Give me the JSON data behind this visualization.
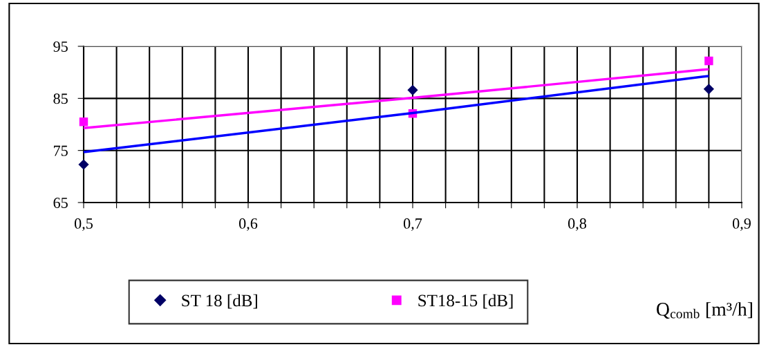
{
  "chart_data": {
    "type": "scatter",
    "xlabel": "Q$_{comb}$ [m³/h]",
    "x": [
      0.5,
      0.7,
      0.88
    ],
    "series": [
      {
        "name": "ST 18 [dB]",
        "color": "#000066",
        "marker": "diamond",
        "values": [
          72.3,
          86.6,
          86.8
        ]
      },
      {
        "name": "ST18-15 [dB]",
        "color": "#ff00ff",
        "marker": "square",
        "values": [
          80.5,
          82.1,
          92.2
        ]
      },
      {
        "type": "line",
        "color": "#0000ff",
        "values": [
          74.7,
          82.2,
          89.3
        ]
      },
      {
        "type": "line",
        "color": "#ff00ff",
        "values": [
          79.3,
          85.1,
          90.6
        ]
      }
    ],
    "xlim": [
      0.5,
      0.9
    ],
    "xticks": [
      {
        "value": 0.5,
        "label": "0,5"
      },
      {
        "value": 0.52,
        "label": null
      },
      {
        "value": 0.54,
        "label": null
      },
      {
        "value": 0.56,
        "label": null
      },
      {
        "value": 0.58,
        "label": null
      },
      {
        "value": 0.6,
        "label": "0,6"
      },
      {
        "value": 0.62,
        "label": null
      },
      {
        "value": 0.64,
        "label": null
      },
      {
        "value": 0.66,
        "label": null
      },
      {
        "value": 0.68,
        "label": null
      },
      {
        "value": 0.7,
        "label": "0,7"
      },
      {
        "value": 0.72,
        "label": null
      },
      {
        "value": 0.74,
        "label": null
      },
      {
        "value": 0.76,
        "label": null
      },
      {
        "value": 0.78,
        "label": null
      },
      {
        "value": 0.8,
        "label": "0,8"
      },
      {
        "value": 0.82,
        "label": null
      },
      {
        "value": 0.84,
        "label": null
      },
      {
        "value": 0.86,
        "label": null
      },
      {
        "value": 0.88,
        "label": null
      },
      {
        "value": 0.9,
        "label": "0,9"
      }
    ],
    "ylim": [
      65,
      95
    ],
    "yticks": [
      65,
      75,
      85,
      95
    ],
    "grid": true,
    "legend": "bottom",
    "line_style": "solid"
  }
}
